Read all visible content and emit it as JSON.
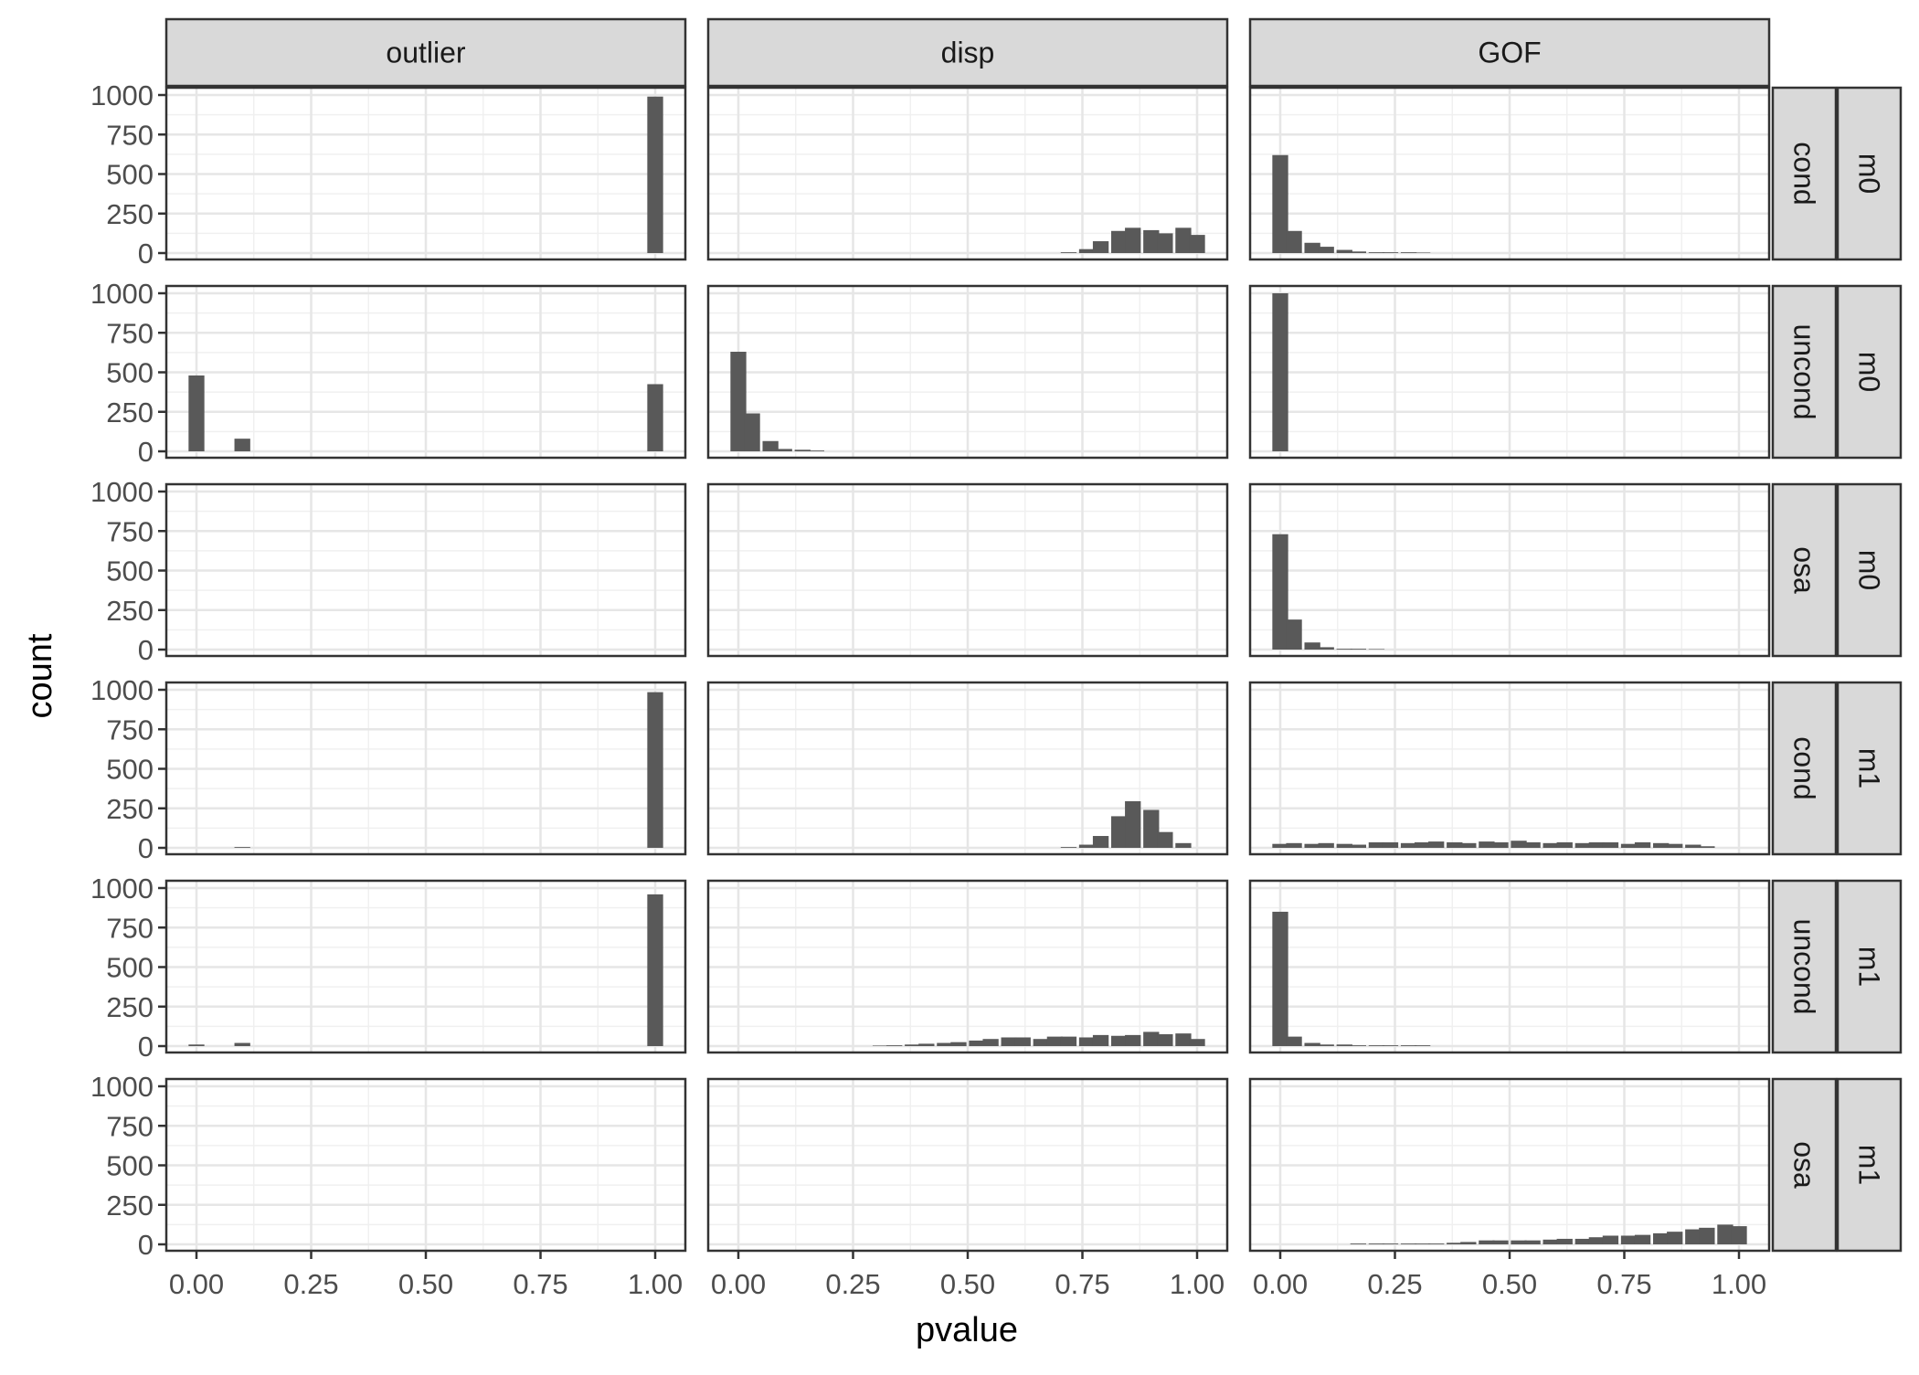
{
  "chart_data": {
    "type": "bar",
    "chart_kind": "faceted histogram",
    "xlabel": "pvalue",
    "ylabel": "count",
    "xlim": [
      0,
      1
    ],
    "ylim": [
      0,
      1000
    ],
    "x_ticks": [
      "0.00",
      "0.25",
      "0.50",
      "0.75",
      "1.00"
    ],
    "y_ticks": [
      "0",
      "250",
      "500",
      "750",
      "1000"
    ],
    "grid": true,
    "bar_color": "#595959",
    "columns": [
      "outlier",
      "disp",
      "GOF"
    ],
    "row_strips": [
      {
        "type": "cond",
        "model": "m0"
      },
      {
        "type": "uncond",
        "model": "m0"
      },
      {
        "type": "osa",
        "model": "m0"
      },
      {
        "type": "cond",
        "model": "m1"
      },
      {
        "type": "uncond",
        "model": "m1"
      },
      {
        "type": "osa",
        "model": "m1"
      }
    ],
    "panels": [
      [
        {
          "bins": [
            [
              1.0,
              990
            ]
          ]
        },
        {
          "bins": [
            [
              0.72,
              5
            ],
            [
              0.76,
              25
            ],
            [
              0.79,
              75
            ],
            [
              0.83,
              140
            ],
            [
              0.86,
              160
            ],
            [
              0.9,
              145
            ],
            [
              0.93,
              125
            ],
            [
              0.97,
              160
            ],
            [
              1.0,
              115
            ]
          ]
        },
        {
          "bins": [
            [
              0.0,
              620
            ],
            [
              0.03,
              140
            ],
            [
              0.07,
              65
            ],
            [
              0.1,
              40
            ],
            [
              0.14,
              20
            ],
            [
              0.17,
              10
            ],
            [
              0.21,
              5
            ],
            [
              0.24,
              5
            ],
            [
              0.28,
              5
            ],
            [
              0.31,
              3
            ]
          ]
        }
      ],
      [
        {
          "bins": [
            [
              0.0,
              480
            ],
            [
              0.1,
              80
            ],
            [
              1.0,
              425
            ]
          ]
        },
        {
          "bins": [
            [
              0.0,
              630
            ],
            [
              0.03,
              240
            ],
            [
              0.07,
              65
            ],
            [
              0.1,
              15
            ],
            [
              0.14,
              10
            ],
            [
              0.17,
              5
            ]
          ]
        },
        {
          "bins": [
            [
              0.0,
              1000
            ]
          ]
        }
      ],
      [
        {
          "bins": []
        },
        {
          "bins": []
        },
        {
          "bins": [
            [
              0.0,
              730
            ],
            [
              0.03,
              190
            ],
            [
              0.07,
              45
            ],
            [
              0.1,
              15
            ],
            [
              0.14,
              5
            ],
            [
              0.17,
              5
            ],
            [
              0.21,
              3
            ]
          ]
        }
      ],
      [
        {
          "bins": [
            [
              0.1,
              5
            ],
            [
              1.0,
              985
            ]
          ]
        },
        {
          "bins": [
            [
              0.72,
              5
            ],
            [
              0.76,
              20
            ],
            [
              0.79,
              75
            ],
            [
              0.83,
              200
            ],
            [
              0.86,
              295
            ],
            [
              0.9,
              240
            ],
            [
              0.93,
              100
            ],
            [
              0.97,
              30
            ]
          ]
        },
        {
          "bins": [
            [
              0.0,
              25
            ],
            [
              0.03,
              30
            ],
            [
              0.07,
              25
            ],
            [
              0.1,
              30
            ],
            [
              0.14,
              25
            ],
            [
              0.17,
              20
            ],
            [
              0.21,
              35
            ],
            [
              0.24,
              35
            ],
            [
              0.28,
              30
            ],
            [
              0.31,
              35
            ],
            [
              0.34,
              40
            ],
            [
              0.38,
              35
            ],
            [
              0.41,
              30
            ],
            [
              0.45,
              40
            ],
            [
              0.48,
              35
            ],
            [
              0.52,
              45
            ],
            [
              0.55,
              35
            ],
            [
              0.59,
              30
            ],
            [
              0.62,
              35
            ],
            [
              0.66,
              30
            ],
            [
              0.69,
              35
            ],
            [
              0.72,
              35
            ],
            [
              0.76,
              25
            ],
            [
              0.79,
              35
            ],
            [
              0.83,
              30
            ],
            [
              0.86,
              25
            ],
            [
              0.9,
              20
            ],
            [
              0.93,
              10
            ]
          ]
        }
      ],
      [
        {
          "bins": [
            [
              0.0,
              10
            ],
            [
              0.1,
              20
            ],
            [
              1.0,
              960
            ]
          ]
        },
        {
          "bins": [
            [
              0.31,
              3
            ],
            [
              0.34,
              5
            ],
            [
              0.38,
              10
            ],
            [
              0.41,
              15
            ],
            [
              0.45,
              20
            ],
            [
              0.48,
              25
            ],
            [
              0.52,
              35
            ],
            [
              0.55,
              45
            ],
            [
              0.59,
              55
            ],
            [
              0.62,
              55
            ],
            [
              0.66,
              45
            ],
            [
              0.69,
              60
            ],
            [
              0.72,
              60
            ],
            [
              0.76,
              55
            ],
            [
              0.79,
              70
            ],
            [
              0.83,
              65
            ],
            [
              0.86,
              70
            ],
            [
              0.9,
              90
            ],
            [
              0.93,
              75
            ],
            [
              0.97,
              80
            ],
            [
              1.0,
              45
            ]
          ]
        },
        {
          "bins": [
            [
              0.0,
              850
            ],
            [
              0.03,
              60
            ],
            [
              0.07,
              20
            ],
            [
              0.1,
              10
            ],
            [
              0.14,
              10
            ],
            [
              0.17,
              5
            ],
            [
              0.21,
              5
            ],
            [
              0.24,
              5
            ],
            [
              0.28,
              5
            ],
            [
              0.31,
              5
            ]
          ]
        }
      ],
      [
        {
          "bins": []
        },
        {
          "bins": []
        },
        {
          "bins": [
            [
              0.17,
              5
            ],
            [
              0.21,
              5
            ],
            [
              0.24,
              5
            ],
            [
              0.28,
              5
            ],
            [
              0.31,
              5
            ],
            [
              0.34,
              5
            ],
            [
              0.38,
              10
            ],
            [
              0.41,
              15
            ],
            [
              0.45,
              25
            ],
            [
              0.48,
              25
            ],
            [
              0.52,
              25
            ],
            [
              0.55,
              25
            ],
            [
              0.59,
              30
            ],
            [
              0.62,
              35
            ],
            [
              0.66,
              35
            ],
            [
              0.69,
              45
            ],
            [
              0.72,
              55
            ],
            [
              0.76,
              55
            ],
            [
              0.79,
              60
            ],
            [
              0.83,
              70
            ],
            [
              0.86,
              80
            ],
            [
              0.9,
              95
            ],
            [
              0.93,
              105
            ],
            [
              0.97,
              125
            ],
            [
              1.0,
              115
            ]
          ]
        }
      ]
    ]
  }
}
